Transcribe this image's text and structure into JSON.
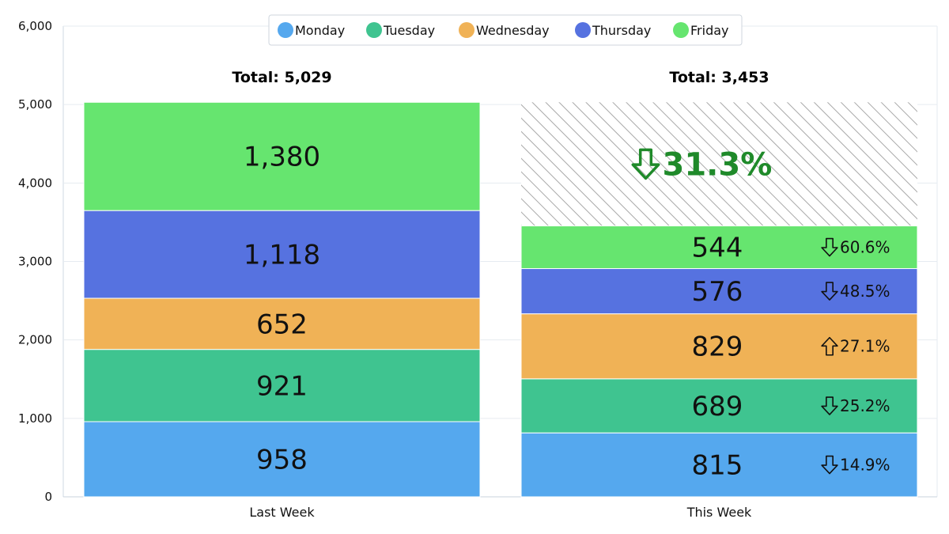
{
  "chart_data": {
    "type": "bar",
    "stacked": true,
    "categories": [
      "Last Week",
      "This Week"
    ],
    "ylim": [
      0,
      6000
    ],
    "yticks": [
      "0",
      "1,000",
      "2,000",
      "3,000",
      "4,000",
      "5,000",
      "6,000"
    ],
    "ytick_values": [
      0,
      1000,
      2000,
      3000,
      4000,
      5000,
      6000
    ],
    "grid": true,
    "legend_position": "top-center",
    "series": [
      {
        "name": "Monday",
        "color": "#55a8ee",
        "values": [
          958,
          815
        ],
        "labels": [
          "958",
          "815"
        ],
        "change": "14.9%",
        "change_dir": "down"
      },
      {
        "name": "Tuesday",
        "color": "#3fc490",
        "values": [
          921,
          689
        ],
        "labels": [
          "921",
          "689"
        ],
        "change": "25.2%",
        "change_dir": "down"
      },
      {
        "name": "Wednesday",
        "color": "#f0b256",
        "values": [
          652,
          829
        ],
        "labels": [
          "652",
          "829"
        ],
        "change": "27.1%",
        "change_dir": "up"
      },
      {
        "name": "Thursday",
        "color": "#5672e0",
        "values": [
          1118,
          576
        ],
        "labels": [
          "1,118",
          "576"
        ],
        "change": "48.5%",
        "change_dir": "down"
      },
      {
        "name": "Friday",
        "color": "#66e56f",
        "values": [
          1380,
          544
        ],
        "labels": [
          "1,380",
          "544"
        ],
        "change": "60.6%",
        "change_dir": "down"
      }
    ],
    "totals": [
      "Total: 5,029",
      "Total: 3,453"
    ],
    "total_values": [
      5029,
      3453
    ],
    "overall_change": "31.3%",
    "overall_change_dir": "down",
    "overall_change_color": "#1f8a2a"
  }
}
